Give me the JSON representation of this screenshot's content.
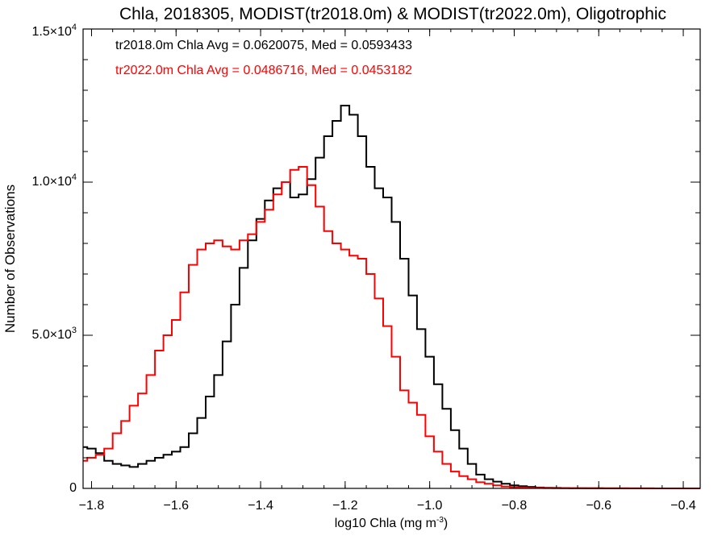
{
  "chart_data": {
    "type": "line",
    "title": "Chla, 2018305, MODIST(tr2018.0m) & MODIST(tr2022.0m), Oligotrophic",
    "xlabel": "log10 Chla (mg m",
    "xlabel_sup": "-3",
    "xlabel_close": ")",
    "ylabel": "Number of Observations",
    "xlim": [
      -1.82,
      -0.36
    ],
    "ylim": [
      0,
      15000
    ],
    "x_ticks": [
      -1.8,
      -1.6,
      -1.4,
      -1.2,
      -1.0,
      -0.8,
      -0.6,
      -0.4
    ],
    "x_tick_labels": [
      "−1.8",
      "−1.6",
      "−1.4",
      "−1.2",
      "−1.0",
      "−0.8",
      "−0.6",
      "−0.4"
    ],
    "y_ticks": [
      0,
      5000,
      10000,
      15000
    ],
    "y_tick_labels": [
      {
        "base": "0",
        "exp": ""
      },
      {
        "base": "5.0×10",
        "exp": "3"
      },
      {
        "base": "1.0×10",
        "exp": "4"
      },
      {
        "base": "1.5×10",
        "exp": "4"
      }
    ],
    "annotations": [
      {
        "text": "tr2018.0m Chla Avg = 0.0620075, Med = 0.0593433",
        "color": "#000000"
      },
      {
        "text": "tr2022.0m Chla Avg = 0.0486716, Med = 0.0453182",
        "color": "#ff0000"
      }
    ],
    "series": [
      {
        "color": "#000000",
        "x": [
          -1.82,
          -1.8,
          -1.78,
          -1.76,
          -1.74,
          -1.72,
          -1.7,
          -1.68,
          -1.66,
          -1.64,
          -1.62,
          -1.6,
          -1.58,
          -1.56,
          -1.54,
          -1.52,
          -1.5,
          -1.48,
          -1.46,
          -1.44,
          -1.42,
          -1.4,
          -1.38,
          -1.36,
          -1.34,
          -1.32,
          -1.3,
          -1.28,
          -1.26,
          -1.24,
          -1.22,
          -1.2,
          -1.18,
          -1.16,
          -1.14,
          -1.12,
          -1.1,
          -1.08,
          -1.06,
          -1.04,
          -1.02,
          -1.0,
          -0.98,
          -0.96,
          -0.94,
          -0.92,
          -0.9,
          -0.88,
          -0.86,
          -0.84,
          -0.82,
          -0.8,
          -0.78,
          -0.76,
          -0.74,
          -0.72,
          -0.7,
          -0.68,
          -0.66,
          -0.64,
          -0.62,
          -0.6,
          -0.58,
          -0.56,
          -0.54,
          -0.52,
          -0.5,
          -0.48,
          -0.46,
          -0.44,
          -0.42,
          -0.4,
          -0.38,
          -0.36
        ],
        "y": [
          1350,
          1300,
          1150,
          900,
          800,
          750,
          700,
          800,
          900,
          1000,
          1100,
          1200,
          1350,
          1800,
          2300,
          3000,
          3700,
          4800,
          6000,
          7200,
          8100,
          8800,
          9400,
          9800,
          10000,
          9500,
          9600,
          10100,
          10800,
          11500,
          12000,
          12500,
          12200,
          11500,
          10500,
          9800,
          9500,
          8700,
          7500,
          6300,
          5200,
          4300,
          3400,
          2600,
          1900,
          1300,
          800,
          450,
          300,
          220,
          150,
          100,
          70,
          50,
          30,
          20,
          15,
          10,
          8,
          5,
          5,
          4,
          3,
          3,
          2,
          2,
          2,
          2,
          1,
          1,
          1,
          1,
          1,
          1
        ]
      },
      {
        "color": "#ff0000",
        "x": [
          -1.82,
          -1.8,
          -1.78,
          -1.76,
          -1.74,
          -1.72,
          -1.7,
          -1.68,
          -1.66,
          -1.64,
          -1.62,
          -1.6,
          -1.58,
          -1.56,
          -1.54,
          -1.52,
          -1.5,
          -1.48,
          -1.46,
          -1.44,
          -1.42,
          -1.4,
          -1.38,
          -1.36,
          -1.34,
          -1.32,
          -1.3,
          -1.28,
          -1.26,
          -1.24,
          -1.22,
          -1.2,
          -1.18,
          -1.16,
          -1.14,
          -1.12,
          -1.1,
          -1.08,
          -1.06,
          -1.04,
          -1.02,
          -1.0,
          -0.98,
          -0.96,
          -0.94,
          -0.92,
          -0.9,
          -0.88,
          -0.86,
          -0.84,
          -0.82,
          -0.8,
          -0.78,
          -0.76,
          -0.74,
          -0.72,
          -0.7,
          -0.68,
          -0.66,
          -0.64,
          -0.62,
          -0.6,
          -0.58,
          -0.56,
          -0.54,
          -0.52,
          -0.5,
          -0.48,
          -0.46,
          -0.44,
          -0.42,
          -0.4,
          -0.38,
          -0.36
        ],
        "y": [
          900,
          1000,
          1100,
          1300,
          1800,
          2200,
          2700,
          3100,
          3700,
          4500,
          5000,
          5500,
          6400,
          7300,
          7800,
          8000,
          8100,
          7900,
          7800,
          8100,
          8300,
          8700,
          9100,
          9600,
          10000,
          10400,
          10500,
          9900,
          9200,
          8400,
          8000,
          7800,
          7600,
          7500,
          7000,
          6200,
          5300,
          4300,
          3200,
          2800,
          2400,
          1700,
          1200,
          800,
          550,
          400,
          300,
          200,
          150,
          100,
          60,
          40,
          30,
          20,
          15,
          10,
          8,
          6,
          5,
          4,
          3,
          3,
          2,
          2,
          2,
          1,
          1,
          1,
          1,
          1,
          1,
          1,
          1,
          1
        ]
      }
    ]
  }
}
